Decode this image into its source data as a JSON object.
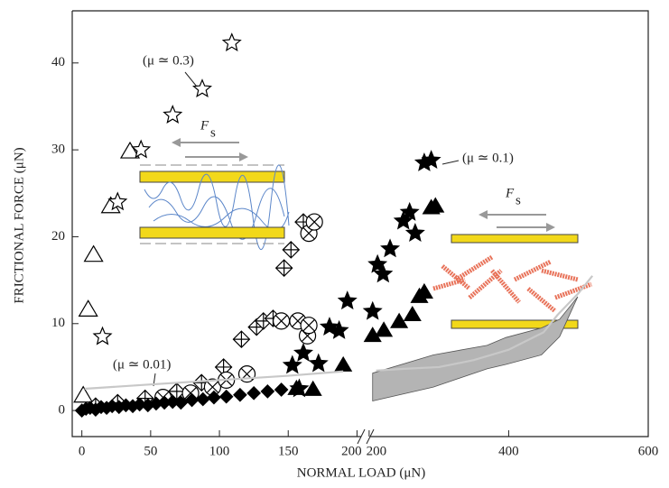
{
  "chart_data": {
    "type": "scatter",
    "xlabel": "NORMAL LOAD (μN)",
    "ylabel": "FRICTIONAL FORCE (μN)",
    "x_segments": [
      {
        "xlim": [
          -7,
          203
        ],
        "xticks": [
          0,
          50,
          100,
          150,
          200
        ]
      },
      {
        "xlim": [
          195,
          600
        ],
        "xticks": [
          200,
          400,
          600
        ]
      }
    ],
    "ylim": [
      -3,
      46
    ],
    "yticks": [
      0,
      10,
      20,
      30,
      40
    ],
    "series": [
      {
        "marker": "triangle-open",
        "color": "#000000",
        "x": [
          1,
          4.6,
          8.5,
          21,
          35
        ],
        "values": [
          1.7,
          11.6,
          17.9,
          23.5,
          29.8
        ]
      },
      {
        "marker": "star-open",
        "color": "#000000",
        "x": [
          15,
          26,
          43,
          66,
          87.5,
          109
        ],
        "values": [
          8.5,
          24,
          30,
          34,
          37,
          42.3
        ]
      },
      {
        "marker": "diamond-cross",
        "color": "#000000",
        "x": [
          10,
          26,
          46,
          69,
          87,
          103,
          116,
          127,
          132,
          139,
          147,
          152,
          161
        ],
        "values": [
          0.5,
          0.9,
          1.4,
          2.2,
          3.2,
          5,
          8.2,
          9.6,
          10.3,
          10.6,
          16.4,
          18.5,
          21.7
        ]
      },
      {
        "marker": "circle-cross",
        "color": "#000000",
        "x": [
          59,
          79,
          95,
          105,
          120,
          145,
          157,
          164,
          165,
          165,
          169
        ],
        "values": [
          1.5,
          2,
          2.7,
          3.5,
          4.2,
          10.3,
          10.3,
          8.6,
          9.8,
          20.4,
          21.7
        ]
      },
      {
        "marker": "diamond-filled",
        "color": "#000000",
        "x": [
          0,
          3,
          6,
          10,
          14,
          18,
          22,
          27,
          32,
          37,
          42,
          48,
          54,
          60,
          66,
          72,
          80,
          88,
          96,
          105,
          115,
          125,
          135,
          145
        ],
        "values": [
          0,
          0.2,
          0.3,
          0.1,
          0.4,
          0.3,
          0.5,
          0.4,
          0.6,
          0.5,
          0.7,
          0.6,
          0.8,
          0.9,
          1,
          0.9,
          1.2,
          1.3,
          1.5,
          1.6,
          1.8,
          2,
          2.2,
          2.4
        ]
      },
      {
        "marker": "star-filled",
        "color": "#000000",
        "x": [
          153,
          158,
          161,
          172,
          180,
          187,
          193,
          205,
          212,
          220,
          230,
          249,
          258,
          266,
          279,
          289
        ],
        "values": [
          5.2,
          2.5,
          6.6,
          5.4,
          9.6,
          9.2,
          12.6,
          11.4,
          16.8,
          15.7,
          18.6,
          21.8,
          22.8,
          20.4,
          28.5,
          28.8
        ]
      },
      {
        "marker": "triangle-filled",
        "color": "#000000",
        "x": [
          156,
          168,
          190,
          205,
          221,
          243,
          262,
          272,
          279,
          289,
          295
        ],
        "values": [
          2.5,
          2.4,
          5.2,
          8.6,
          9.2,
          10.2,
          11,
          13.1,
          13.6,
          23.3,
          23.5
        ]
      },
      {
        "marker": "line",
        "color": "#c8c8c8",
        "x": [
          2,
          50,
          100,
          150,
          190,
          200,
          210,
          250,
          300,
          350,
          400,
          450,
          470,
          500,
          520
        ],
        "values": [
          2.5,
          3,
          3.5,
          4,
          4.5,
          null,
          4.6,
          4.8,
          5,
          5.8,
          7,
          9,
          11,
          13.5,
          15.5
        ]
      }
    ],
    "band": {
      "color": "#b4b4b4",
      "x": [
        205,
        292,
        369,
        396,
        447,
        473,
        499
      ],
      "upper": [
        4.3,
        6.4,
        7.5,
        8.4,
        9.5,
        10.5,
        13.1
      ],
      "lower": [
        1.1,
        2.7,
        4.8,
        5.3,
        6.4,
        8.5,
        13.1
      ]
    },
    "annotations": [
      "(μ ≃ 0.3)",
      "(μ ≃ 0.1)",
      "(μ ≃ 0.01)"
    ],
    "insets": [
      {
        "label": "F",
        "subscript": "s"
      },
      {
        "label": "F",
        "subscript": "s"
      }
    ]
  }
}
